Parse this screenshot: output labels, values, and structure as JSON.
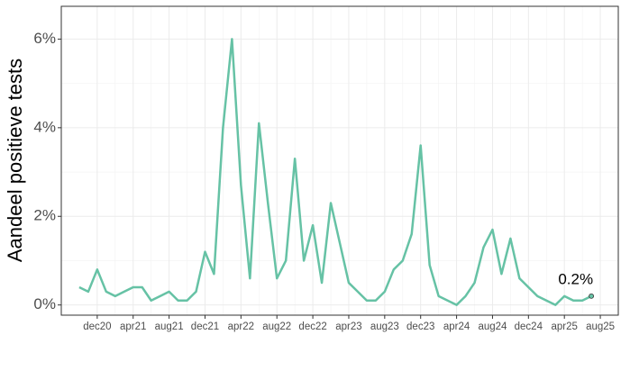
{
  "chart_data": {
    "type": "line",
    "ylabel": "Aandeel positieve tests",
    "x": [
      "2020-10",
      "2020-11",
      "2020-12",
      "2021-01",
      "2021-02",
      "2021-03",
      "2021-04",
      "2021-05",
      "2021-06",
      "2021-07",
      "2021-08",
      "2021-09",
      "2021-10",
      "2021-11",
      "2021-12",
      "2022-01",
      "2022-02",
      "2022-03",
      "2022-04",
      "2022-05",
      "2022-06",
      "2022-07",
      "2022-08",
      "2022-09",
      "2022-10",
      "2022-11",
      "2022-12",
      "2023-01",
      "2023-02",
      "2023-03",
      "2023-04",
      "2023-05",
      "2023-06",
      "2023-07",
      "2023-08",
      "2023-09",
      "2023-10",
      "2023-11",
      "2023-12",
      "2024-01",
      "2024-02",
      "2024-03",
      "2024-04",
      "2024-05",
      "2024-06",
      "2024-07",
      "2024-08",
      "2024-09",
      "2024-10",
      "2024-11",
      "2024-12",
      "2025-01",
      "2025-02",
      "2025-03",
      "2025-04",
      "2025-05",
      "2025-06",
      "2025-07"
    ],
    "series": [
      {
        "name": "Aandeel positieve tests",
        "color": "#66c2a5",
        "values": [
          0.4,
          0.3,
          0.8,
          0.3,
          0.2,
          0.3,
          0.4,
          0.4,
          0.1,
          0.2,
          0.3,
          0.1,
          0.1,
          0.3,
          1.2,
          0.7,
          4.0,
          6.0,
          2.7,
          0.6,
          4.1,
          2.3,
          0.6,
          1.0,
          3.3,
          1.0,
          1.8,
          0.5,
          2.3,
          1.4,
          0.5,
          0.3,
          0.1,
          0.1,
          0.3,
          0.8,
          1.0,
          1.6,
          3.6,
          0.9,
          0.2,
          0.1,
          0.0,
          0.2,
          0.5,
          1.3,
          1.7,
          0.7,
          1.5,
          0.6,
          0.4,
          0.2,
          0.1,
          0.0,
          0.2,
          0.1,
          0.1,
          0.2
        ]
      }
    ],
    "annotation": "0.2%",
    "xlim": [
      "2020-08",
      "2025-10"
    ],
    "xticks": [
      {
        "value": "2020-12",
        "label": "dec20"
      },
      {
        "value": "2021-04",
        "label": "apr21"
      },
      {
        "value": "2021-08",
        "label": "aug21"
      },
      {
        "value": "2021-12",
        "label": "dec21"
      },
      {
        "value": "2022-04",
        "label": "apr22"
      },
      {
        "value": "2022-08",
        "label": "aug22"
      },
      {
        "value": "2022-12",
        "label": "dec22"
      },
      {
        "value": "2023-04",
        "label": "apr23"
      },
      {
        "value": "2023-08",
        "label": "aug23"
      },
      {
        "value": "2023-12",
        "label": "dec23"
      },
      {
        "value": "2024-04",
        "label": "apr24"
      },
      {
        "value": "2024-08",
        "label": "aug24"
      },
      {
        "value": "2024-12",
        "label": "dec24"
      },
      {
        "value": "2025-04",
        "label": "apr25"
      },
      {
        "value": "2025-08",
        "label": "aug25"
      }
    ],
    "ylim": [
      -0.23,
      6.74
    ],
    "yticks": [
      {
        "value": 0,
        "label": "0%"
      },
      {
        "value": 2,
        "label": "2%"
      },
      {
        "value": 4,
        "label": "4%"
      },
      {
        "value": 6,
        "label": "6%"
      }
    ],
    "grid": true
  }
}
